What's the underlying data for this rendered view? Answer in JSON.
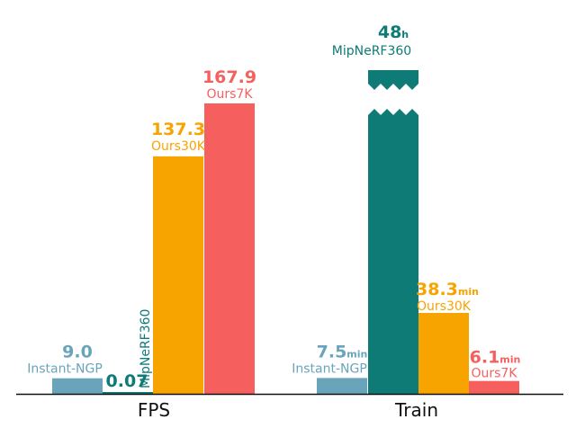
{
  "chart_data": [
    {
      "type": "bar",
      "title": "",
      "group": "FPS",
      "categories": [
        "Instant-NGP",
        "MipNeRF360",
        "Ours30K",
        "Ours7K"
      ],
      "values": [
        9.0,
        0.07,
        137.3,
        167.9
      ],
      "value_labels": [
        "9.0",
        "0.07",
        "137.3",
        "167.9"
      ],
      "units": [
        "",
        "",
        "",
        ""
      ],
      "colors": [
        "#6aa4bb",
        "#0e7b77",
        "#f8a400",
        "#f5605f"
      ],
      "ylim": [
        0,
        167.9
      ],
      "grid": false
    },
    {
      "type": "bar",
      "title": "",
      "group": "Train",
      "categories": [
        "Instant-NGP",
        "MipNeRF360",
        "Ours30K",
        "Ours7K"
      ],
      "values": [
        7.5,
        48,
        38.3,
        6.1
      ],
      "value_labels": [
        "7.5",
        "48",
        "38.3",
        "6.1"
      ],
      "units": [
        "min",
        "h",
        "min",
        "min"
      ],
      "values_in_minutes": [
        7.5,
        2880,
        38.3,
        6.1
      ],
      "broken_bar": "MipNeRF360",
      "colors": [
        "#6aa4bb",
        "#0e7b77",
        "#f8a400",
        "#f5605f"
      ],
      "grid": false
    }
  ]
}
